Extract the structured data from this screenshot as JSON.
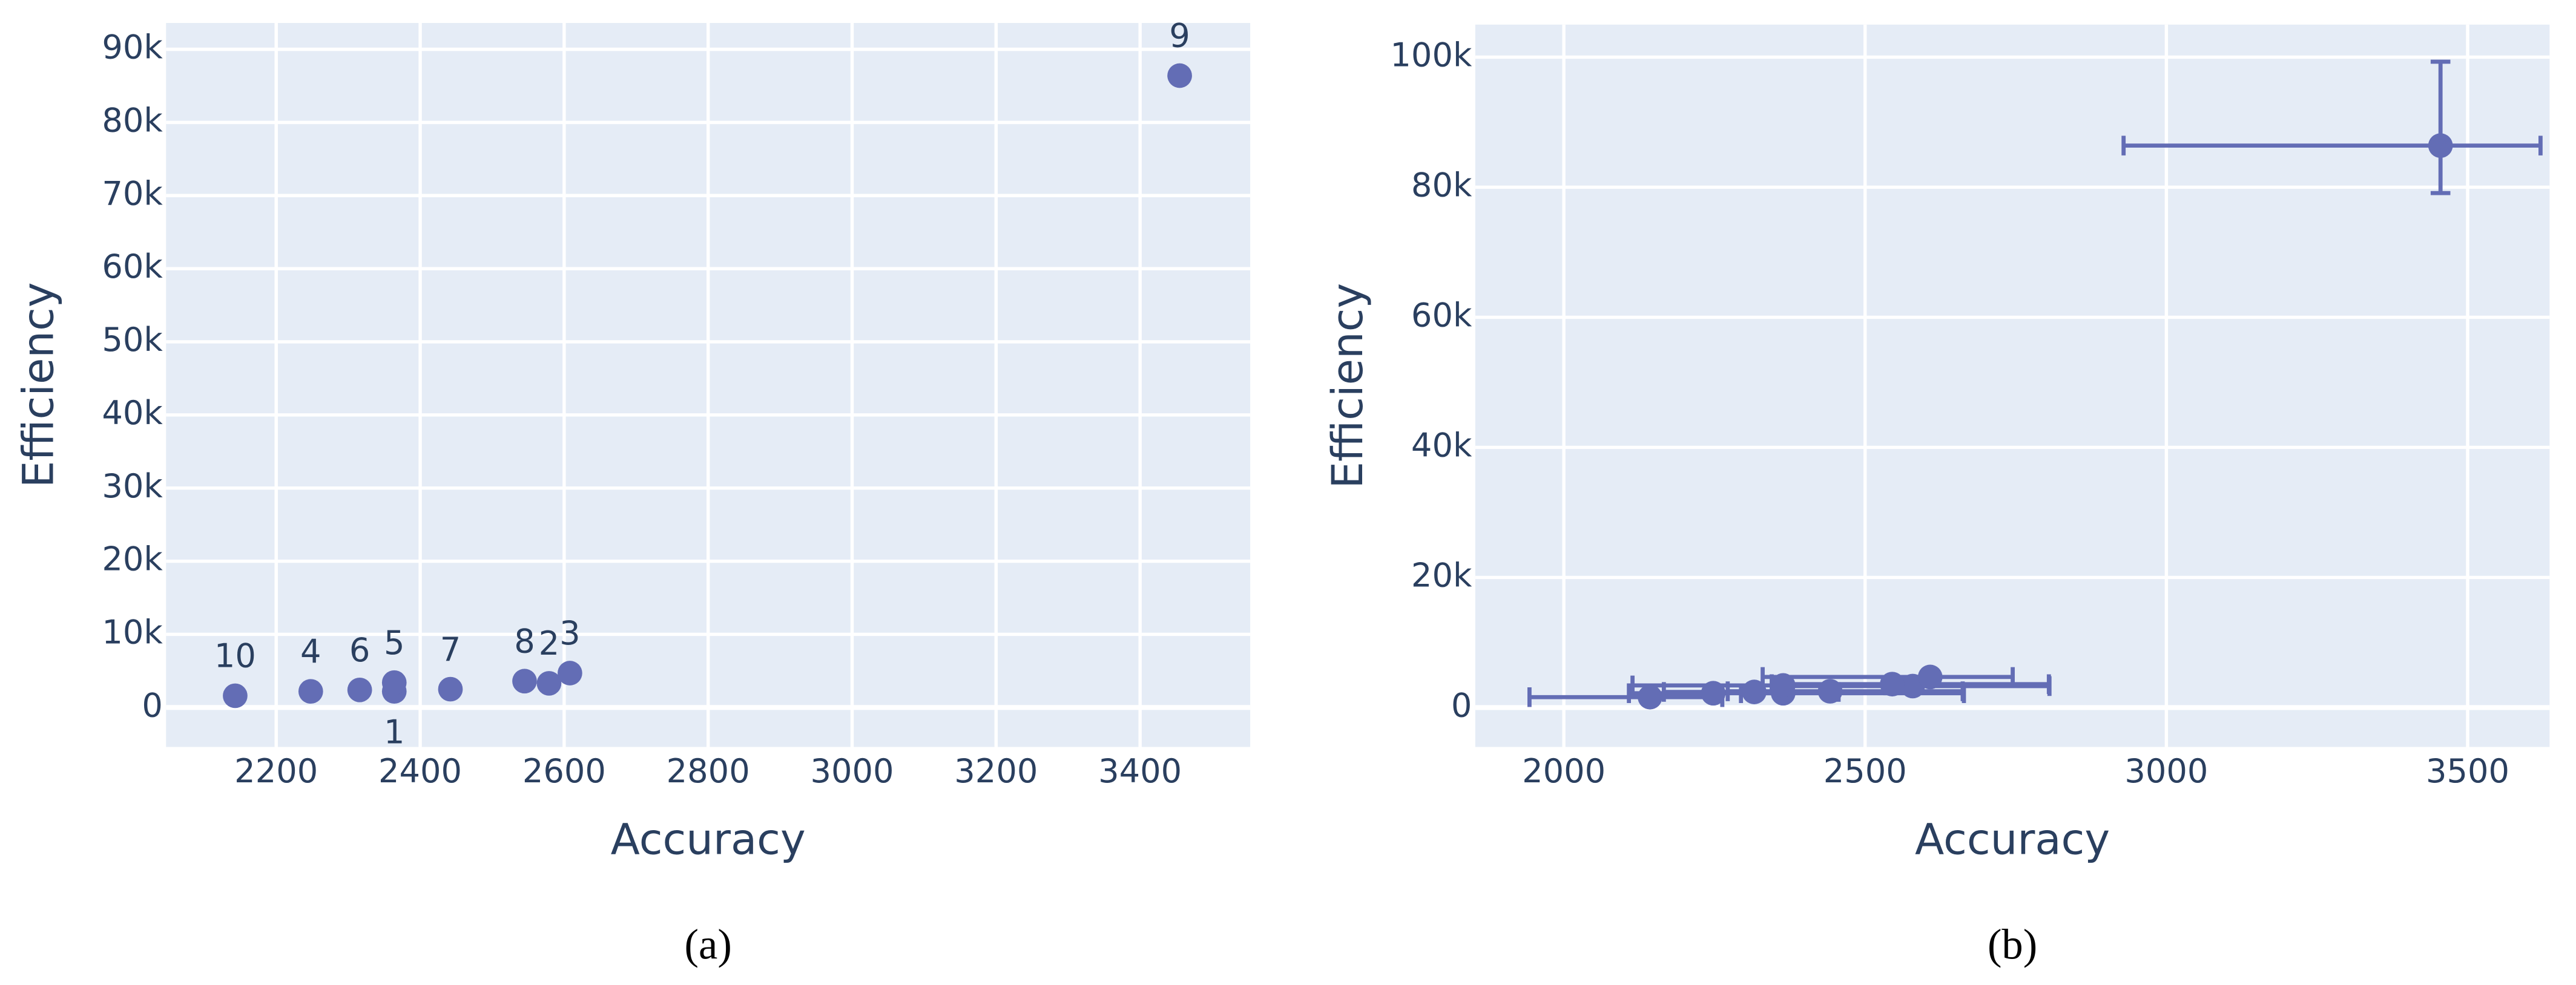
{
  "chart_data": [
    {
      "type": "scatter",
      "caption": "(a)",
      "x_label": "Accuracy",
      "y_label": "Efficiency",
      "labels": [
        "1",
        "2",
        "3",
        "4",
        "5",
        "6",
        "7",
        "8",
        "9",
        "10"
      ],
      "text_positions": [
        "bottom",
        "top",
        "top",
        "top",
        "top",
        "top",
        "top",
        "top",
        "top",
        "top"
      ],
      "x": [
        2364,
        2579,
        2608,
        2248,
        2364,
        2316,
        2442,
        2545,
        3455,
        2143
      ],
      "y": [
        2200,
        3300,
        4700,
        2200,
        3400,
        2400,
        2500,
        3600,
        86400,
        1600
      ],
      "color": "#636db5",
      "xlim": [
        2047,
        3553
      ],
      "xticks": [
        2200,
        2400,
        2600,
        2800,
        3000,
        3200,
        3400
      ],
      "ylim": [
        -5400,
        93600
      ],
      "yticks": [
        0,
        {
          "value": 10000,
          "label": "10k"
        },
        {
          "value": 20000,
          "label": "20k"
        },
        {
          "value": 30000,
          "label": "30k"
        },
        {
          "value": 40000,
          "label": "40k"
        },
        {
          "value": 50000,
          "label": "50k"
        },
        {
          "value": 60000,
          "label": "60k"
        },
        {
          "value": 70000,
          "label": "70k"
        },
        {
          "value": 80000,
          "label": "80k"
        },
        {
          "value": 90000,
          "label": "90k"
        }
      ],
      "grid": true
    },
    {
      "type": "scatter",
      "caption": "(b)",
      "x_label": "Accuracy",
      "y_label": "Efficiency",
      "x": [
        2364,
        2579,
        2608,
        2248,
        2364,
        2316,
        2442,
        2545,
        3455,
        2143
      ],
      "y": [
        2200,
        3300,
        4700,
        2200,
        3400,
        2400,
        2500,
        3600,
        86400,
        1600
      ],
      "x_err_minus": [
        70,
        220,
        278,
        140,
        250,
        150,
        170,
        200,
        526,
        200
      ],
      "x_err_plus": [
        300,
        227,
        137,
        110,
        170,
        140,
        220,
        260,
        166,
        120
      ],
      "y_err_minus": [
        600,
        600,
        600,
        600,
        600,
        600,
        600,
        600,
        7300,
        600
      ],
      "y_err_plus": [
        600,
        600,
        600,
        600,
        600,
        600,
        600,
        600,
        12900,
        600
      ],
      "color": "#636db5",
      "xlim": [
        1853,
        3636
      ],
      "xticks": [
        2000,
        2500,
        3000,
        3500
      ],
      "ylim": [
        -6060,
        105000
      ],
      "yticks": [
        0,
        {
          "value": 20000,
          "label": "20k"
        },
        {
          "value": 40000,
          "label": "40k"
        },
        {
          "value": 60000,
          "label": "60k"
        },
        {
          "value": 80000,
          "label": "80k"
        },
        {
          "value": 100000,
          "label": "100k"
        }
      ],
      "grid": true
    }
  ]
}
